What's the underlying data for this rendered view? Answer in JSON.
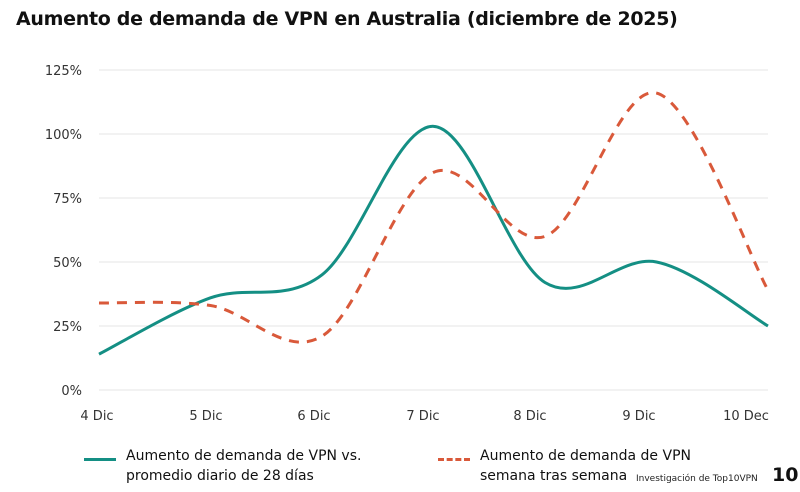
{
  "chart_data": {
    "type": "line",
    "title": "Aumento de demanda de VPN en Australia (diciembre de 2025)",
    "categories": [
      "4 Dic",
      "5 Dic",
      "6 Dic",
      "7 Dic",
      "8 Dic",
      "9 Dic",
      "10 Dec"
    ],
    "yticks": [
      "0%",
      "25%",
      "50%",
      "75%",
      "100%",
      "125%"
    ],
    "ylim": [
      0,
      125
    ],
    "grid": true,
    "legend_position": "bottom",
    "series": [
      {
        "name": "Aumento de demanda de VPN vs. promedio diario de 28 días",
        "line1": "Aumento de demanda de VPN vs.",
        "line2": "promedio diario de 28 días",
        "color": "#148f84",
        "style": "solid",
        "values": [
          14,
          36,
          45,
          103,
          42,
          50,
          25
        ]
      },
      {
        "name": "Aumento de demanda de VPN semana tras semana",
        "line1": "Aumento de demanda de VPN",
        "line2": "semana tras semana",
        "color": "#d9593a",
        "style": "dashed",
        "values": [
          34,
          33,
          21,
          85,
          60,
          116,
          39
        ]
      }
    ]
  },
  "footer": {
    "credit": "Investigación de Top10VPN",
    "logo": "10"
  }
}
